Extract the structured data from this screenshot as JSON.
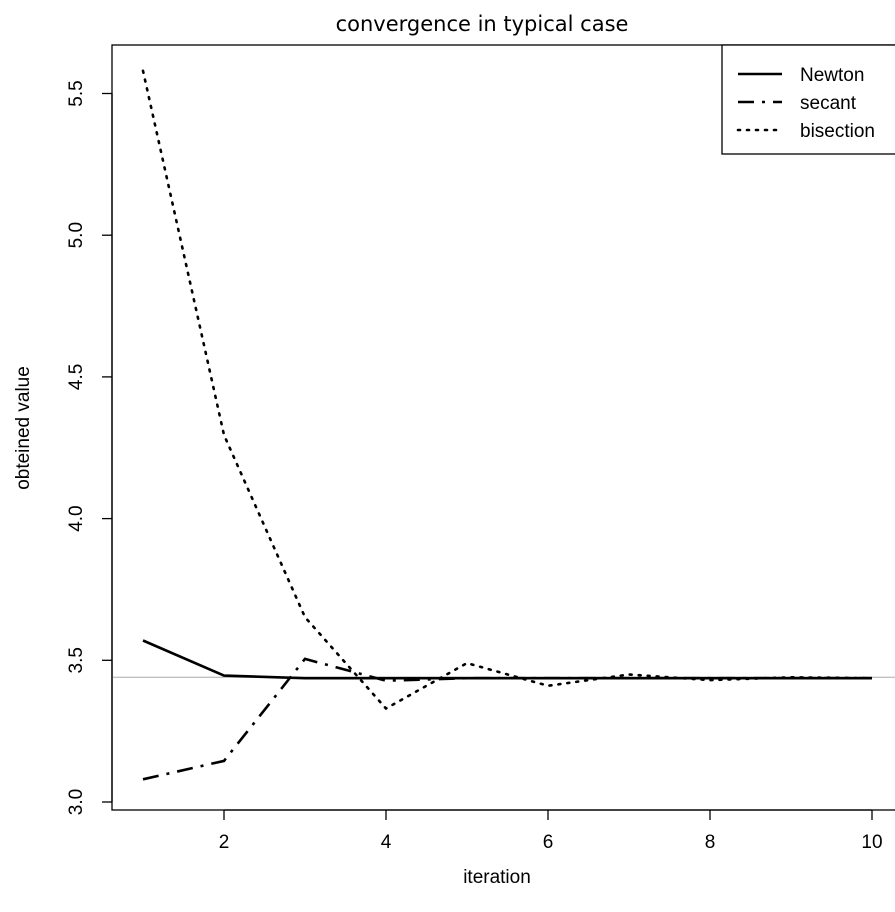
{
  "chart_data": {
    "type": "line",
    "title": "convergence in typical case",
    "xlabel": "iteration",
    "ylabel": "obteined value",
    "xlim": [
      1,
      10
    ],
    "ylim": [
      3.0,
      5.6
    ],
    "xticks": [
      2,
      4,
      6,
      8,
      10
    ],
    "yticks": [
      3.0,
      3.5,
      4.0,
      4.5,
      5.0,
      5.5
    ],
    "ytick_labels": [
      "3.0",
      "3.5",
      "4.0",
      "4.5",
      "5.0",
      "5.5"
    ],
    "xtick_labels": [
      "2",
      "4",
      "6",
      "8",
      "10"
    ],
    "x": [
      1,
      2,
      3,
      4,
      5,
      6,
      7,
      8,
      9,
      10
    ],
    "series": [
      {
        "name": "Newton",
        "style": "solid",
        "values": [
          3.57,
          3.446,
          3.437,
          3.437,
          3.437,
          3.437,
          3.437,
          3.437,
          3.437,
          3.437
        ]
      },
      {
        "name": "secant",
        "style": "dashdot",
        "values": [
          3.08,
          3.145,
          3.505,
          3.428,
          3.437,
          3.437,
          3.437,
          3.437,
          3.437,
          3.437
        ]
      },
      {
        "name": "bisection",
        "style": "dotted",
        "values": [
          5.58,
          4.295,
          3.652,
          3.33,
          3.49,
          3.41,
          3.45,
          3.43,
          3.44,
          3.437
        ]
      }
    ],
    "reference_line": {
      "y": 3.44,
      "color": "#c0c0c0"
    },
    "legend_position": "top-right",
    "grid": false
  }
}
